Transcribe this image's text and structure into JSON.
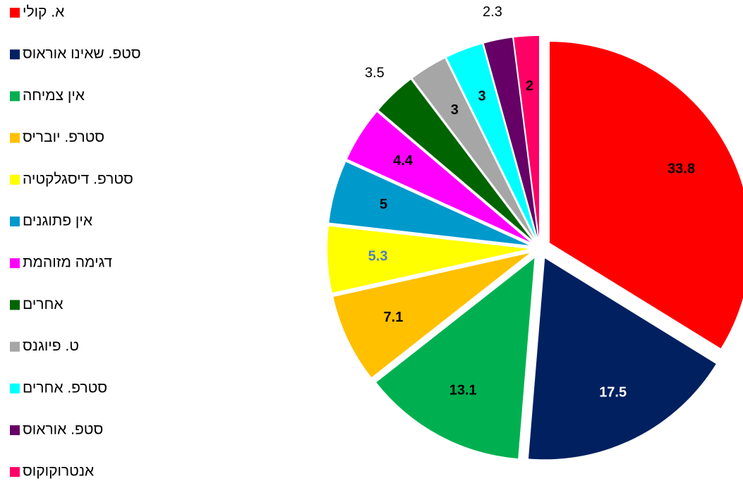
{
  "chart_data": {
    "type": "pie",
    "categories": [
      "א. קולי",
      "סטפ. שאינו אוראוס",
      "אין צמיחה",
      "סטרפ. יובריס",
      "סטרפ. דיסגלקטיה",
      "אין פתוגנים",
      "דגימה מזוהמת",
      "אחרים",
      "ט. פיוגנס",
      "סטרפ. אחרים",
      "סטפ. אוראוס",
      "אנטרוקוקוס"
    ],
    "values": [
      33.8,
      17.5,
      13.1,
      7.1,
      5.3,
      5,
      4.4,
      3.5,
      3,
      3,
      2.3,
      2
    ],
    "colors": [
      "#ff0000",
      "#002060",
      "#00b050",
      "#ffc000",
      "#ffff00",
      "#0099cc",
      "#ff00ff",
      "#006400",
      "#a6a6a6",
      "#00ffff",
      "#660066",
      "#ff0066"
    ],
    "label_colors": [
      "#000000",
      "#ffffff",
      "#000000",
      "#000000",
      "#4f81bd",
      "#000000",
      "#000000",
      "#000000",
      "#000000",
      "#000000",
      "#000000",
      "#000000"
    ]
  }
}
